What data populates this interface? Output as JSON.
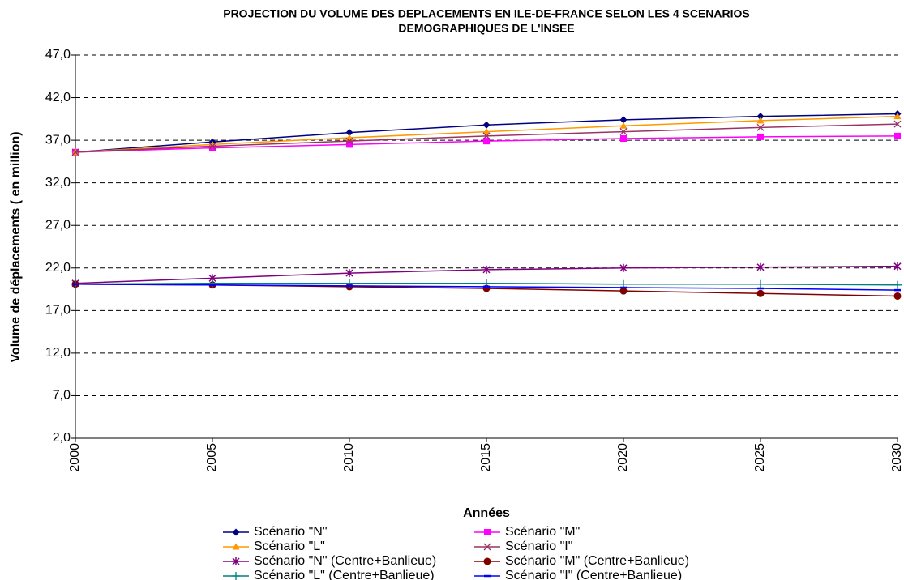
{
  "chart_data": {
    "type": "line",
    "title": [
      "PROJECTION DU VOLUME DES DEPLACEMENTS EN ILE-DE-FRANCE SELON LES 4 SCENARIOS",
      "DEMOGRAPHIQUES DE L'INSEE"
    ],
    "x_label": "Années",
    "y_label": "Volume de déplacements ( en million)",
    "x": [
      2000,
      2005,
      2010,
      2015,
      2020,
      2025,
      2030
    ],
    "xlim": [
      2000,
      2030
    ],
    "xticks": [
      2000,
      2005,
      2010,
      2015,
      2020,
      2025,
      2030
    ],
    "ylim": [
      2,
      47
    ],
    "yticks": [
      {
        "value": 2,
        "label": "2,0"
      },
      {
        "value": 7,
        "label": "7,0"
      },
      {
        "value": 12,
        "label": "12,0"
      },
      {
        "value": 17,
        "label": "17,0"
      },
      {
        "value": 22,
        "label": "22,0"
      },
      {
        "value": 27,
        "label": "27,0"
      },
      {
        "value": 32,
        "label": "32,0"
      },
      {
        "value": 37,
        "label": "37,0"
      },
      {
        "value": 42,
        "label": "42,0"
      },
      {
        "value": 47,
        "label": "47,0"
      }
    ],
    "grid": true,
    "legend": "bottom",
    "series": [
      {
        "name": "Scénario \"N\"",
        "color": "#000080",
        "marker": "diamond",
        "values": [
          35.6,
          36.8,
          37.9,
          38.8,
          39.4,
          39.8,
          40.1
        ]
      },
      {
        "name": "Scénario \"M\"",
        "color": "#FF00FF",
        "marker": "square",
        "values": [
          35.6,
          36.1,
          36.5,
          36.9,
          37.2,
          37.4,
          37.5
        ]
      },
      {
        "name": "Scénario \"L\"",
        "color": "#FF9900",
        "marker": "triangle",
        "values": [
          35.6,
          36.5,
          37.3,
          38.0,
          38.7,
          39.3,
          39.8
        ]
      },
      {
        "name": "Scénario \"I\"",
        "color": "#993366",
        "marker": "x",
        "values": [
          35.6,
          36.3,
          36.9,
          37.5,
          38.0,
          38.5,
          38.9
        ]
      },
      {
        "name": "Scénario \"N\" (Centre+Banlieue)",
        "color": "#800080",
        "marker": "star",
        "values": [
          20.2,
          20.8,
          21.4,
          21.8,
          22.0,
          22.1,
          22.2
        ]
      },
      {
        "name": "Scénario \"M\" (Centre+Banlieue)",
        "color": "#800000",
        "marker": "circle",
        "values": [
          20.1,
          20.0,
          19.8,
          19.6,
          19.3,
          19.0,
          18.7
        ]
      },
      {
        "name": "Scénario \"L\" (Centre+Banlieue)",
        "color": "#008080",
        "marker": "plus",
        "values": [
          20.1,
          20.2,
          20.2,
          20.2,
          20.1,
          20.1,
          20.0
        ]
      },
      {
        "name": "Scénario \"I\" (Centre+Banlieue)",
        "color": "#0000FF",
        "marker": "dash",
        "values": [
          20.1,
          20.0,
          19.9,
          19.8,
          19.7,
          19.6,
          19.4
        ]
      }
    ]
  }
}
